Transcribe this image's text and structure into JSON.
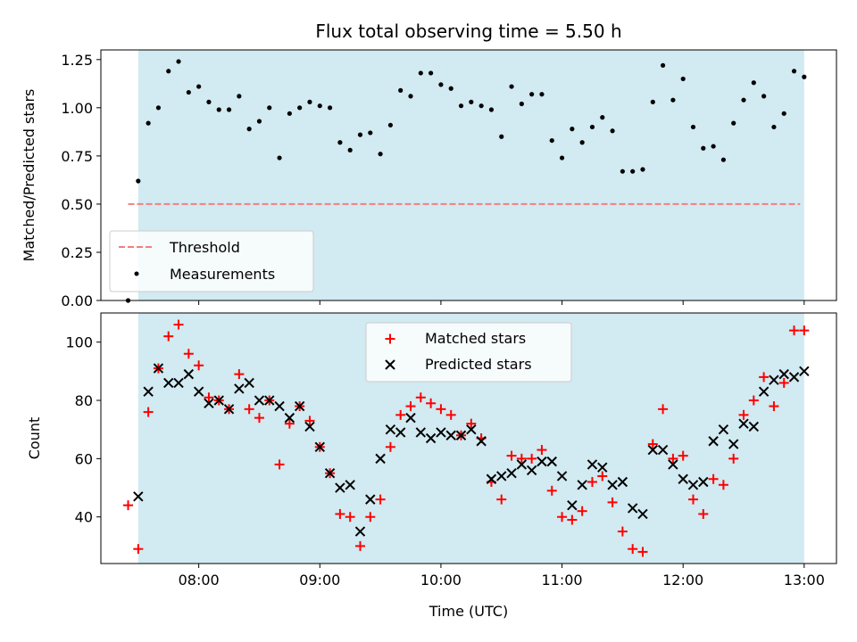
{
  "colors": {
    "shade": "#add8e6",
    "threshold": "#f08080",
    "matched": "#ff0000",
    "predicted": "#000000",
    "measurement": "#000000"
  },
  "chart_data": [
    {
      "type": "scatter",
      "title": "Flux total observing time = 5.50 h",
      "xlabel": "",
      "ylabel": "Matched/Predicted stars",
      "ylim": [
        0.0,
        1.3
      ],
      "yticks": [
        "0.00",
        "0.25",
        "0.50",
        "0.75",
        "1.00",
        "1.25"
      ],
      "ytick_values": [
        0.0,
        0.25,
        0.5,
        0.75,
        1.0,
        1.25
      ],
      "threshold": {
        "label": "Threshold",
        "value": 0.5,
        "x_range": [
          "07:25",
          "12:58"
        ]
      },
      "observing_window": [
        "07:30",
        "13:00"
      ],
      "legend": [
        "Threshold",
        "Measurements"
      ],
      "legend_position": "lower-left",
      "series": [
        {
          "name": "Measurements",
          "x": [
            "07:25",
            "07:30",
            "07:35",
            "07:40",
            "07:45",
            "07:50",
            "07:55",
            "08:00",
            "08:05",
            "08:10",
            "08:15",
            "08:20",
            "08:25",
            "08:30",
            "08:35",
            "08:40",
            "08:45",
            "08:50",
            "08:55",
            "09:00",
            "09:05",
            "09:10",
            "09:15",
            "09:20",
            "09:25",
            "09:30",
            "09:35",
            "09:40",
            "09:45",
            "09:50",
            "09:55",
            "10:00",
            "10:05",
            "10:10",
            "10:15",
            "10:20",
            "10:25",
            "10:30",
            "10:35",
            "10:40",
            "10:45",
            "10:50",
            "10:55",
            "11:00",
            "11:05",
            "11:10",
            "11:15",
            "11:20",
            "11:25",
            "11:30",
            "11:35",
            "11:40",
            "11:45",
            "11:50",
            "11:55",
            "12:00",
            "12:05",
            "12:10",
            "12:15",
            "12:20",
            "12:25",
            "12:30",
            "12:35",
            "12:40",
            "12:45",
            "12:50",
            "12:55",
            "13:00"
          ],
          "y": [
            0.0,
            0.62,
            0.92,
            1.0,
            1.19,
            1.24,
            1.08,
            1.11,
            1.03,
            0.99,
            0.99,
            1.06,
            0.89,
            0.93,
            1.0,
            0.74,
            0.97,
            1.0,
            1.03,
            1.01,
            1.0,
            0.82,
            0.78,
            0.86,
            0.87,
            0.76,
            0.91,
            1.09,
            1.06,
            1.18,
            1.18,
            1.12,
            1.1,
            1.01,
            1.03,
            1.01,
            0.99,
            0.85,
            1.11,
            1.02,
            1.07,
            1.07,
            0.83,
            0.74,
            0.89,
            0.82,
            0.9,
            0.95,
            0.88,
            0.67,
            0.67,
            0.68,
            1.03,
            1.22,
            1.04,
            1.15,
            0.9,
            0.79,
            0.8,
            0.73,
            0.92,
            1.04,
            1.13,
            1.06,
            0.9,
            0.97,
            1.19,
            1.16
          ]
        }
      ]
    },
    {
      "type": "scatter",
      "title": "",
      "xlabel": "Time (UTC)",
      "ylabel": "Count",
      "ylim": [
        24,
        110
      ],
      "yticks": [
        "40",
        "60",
        "80",
        "100"
      ],
      "ytick_values": [
        40,
        60,
        80,
        100
      ],
      "xticks": [
        "08:00",
        "09:00",
        "10:00",
        "11:00",
        "12:00",
        "13:00"
      ],
      "observing_window": [
        "07:30",
        "13:00"
      ],
      "legend": [
        "Matched stars",
        "Predicted stars"
      ],
      "legend_position": "upper-center",
      "series": [
        {
          "name": "Matched stars",
          "x": [
            "07:25",
            "07:30",
            "07:35",
            "07:40",
            "07:45",
            "07:50",
            "07:55",
            "08:00",
            "08:05",
            "08:10",
            "08:15",
            "08:20",
            "08:25",
            "08:30",
            "08:35",
            "08:40",
            "08:45",
            "08:50",
            "08:55",
            "09:00",
            "09:05",
            "09:10",
            "09:15",
            "09:20",
            "09:25",
            "09:30",
            "09:35",
            "09:40",
            "09:45",
            "09:50",
            "09:55",
            "10:00",
            "10:05",
            "10:10",
            "10:15",
            "10:20",
            "10:25",
            "10:30",
            "10:35",
            "10:40",
            "10:45",
            "10:50",
            "10:55",
            "11:00",
            "11:05",
            "11:10",
            "11:15",
            "11:20",
            "11:25",
            "11:30",
            "11:35",
            "11:40",
            "11:45",
            "11:50",
            "11:55",
            "12:00",
            "12:05",
            "12:10",
            "12:15",
            "12:20",
            "12:25",
            "12:30",
            "12:35",
            "12:40",
            "12:45",
            "12:50",
            "12:55",
            "13:00"
          ],
          "y": [
            44,
            29,
            76,
            91,
            102,
            106,
            96,
            92,
            81,
            80,
            77,
            89,
            77,
            74,
            80,
            58,
            72,
            78,
            73,
            64,
            55,
            41,
            40,
            30,
            40,
            46,
            64,
            75,
            78,
            81,
            79,
            77,
            75,
            68,
            72,
            67,
            52,
            46,
            61,
            60,
            60,
            63,
            49,
            40,
            39,
            42,
            52,
            54,
            45,
            35,
            29,
            28,
            65,
            77,
            60,
            61,
            46,
            41,
            53,
            51,
            60,
            75,
            80,
            88,
            78,
            86,
            104,
            104
          ]
        },
        {
          "name": "Predicted stars",
          "x": [
            "07:30",
            "07:35",
            "07:40",
            "07:45",
            "07:50",
            "07:55",
            "08:00",
            "08:05",
            "08:10",
            "08:15",
            "08:20",
            "08:25",
            "08:30",
            "08:35",
            "08:40",
            "08:45",
            "08:50",
            "08:55",
            "09:00",
            "09:05",
            "09:10",
            "09:15",
            "09:20",
            "09:25",
            "09:30",
            "09:35",
            "09:40",
            "09:45",
            "09:50",
            "09:55",
            "10:00",
            "10:05",
            "10:10",
            "10:15",
            "10:20",
            "10:25",
            "10:30",
            "10:35",
            "10:40",
            "10:45",
            "10:50",
            "10:55",
            "11:00",
            "11:05",
            "11:10",
            "11:15",
            "11:20",
            "11:25",
            "11:30",
            "11:35",
            "11:40",
            "11:45",
            "11:50",
            "11:55",
            "12:00",
            "12:05",
            "12:10",
            "12:15",
            "12:20",
            "12:25",
            "12:30",
            "12:35",
            "12:40",
            "12:45",
            "12:50",
            "12:55",
            "13:00"
          ],
          "y": [
            47,
            83,
            91,
            86,
            86,
            89,
            83,
            79,
            80,
            77,
            84,
            86,
            80,
            80,
            78,
            74,
            78,
            71,
            64,
            55,
            50,
            51,
            35,
            46,
            60,
            70,
            69,
            74,
            69,
            67,
            69,
            68,
            68,
            70,
            66,
            53,
            54,
            55,
            58,
            56,
            59,
            59,
            54,
            44,
            51,
            58,
            57,
            51,
            52,
            43,
            41,
            63,
            63,
            58,
            53,
            51,
            52,
            66,
            70,
            65,
            72,
            71,
            83,
            87,
            89,
            88,
            90
          ]
        }
      ]
    }
  ]
}
